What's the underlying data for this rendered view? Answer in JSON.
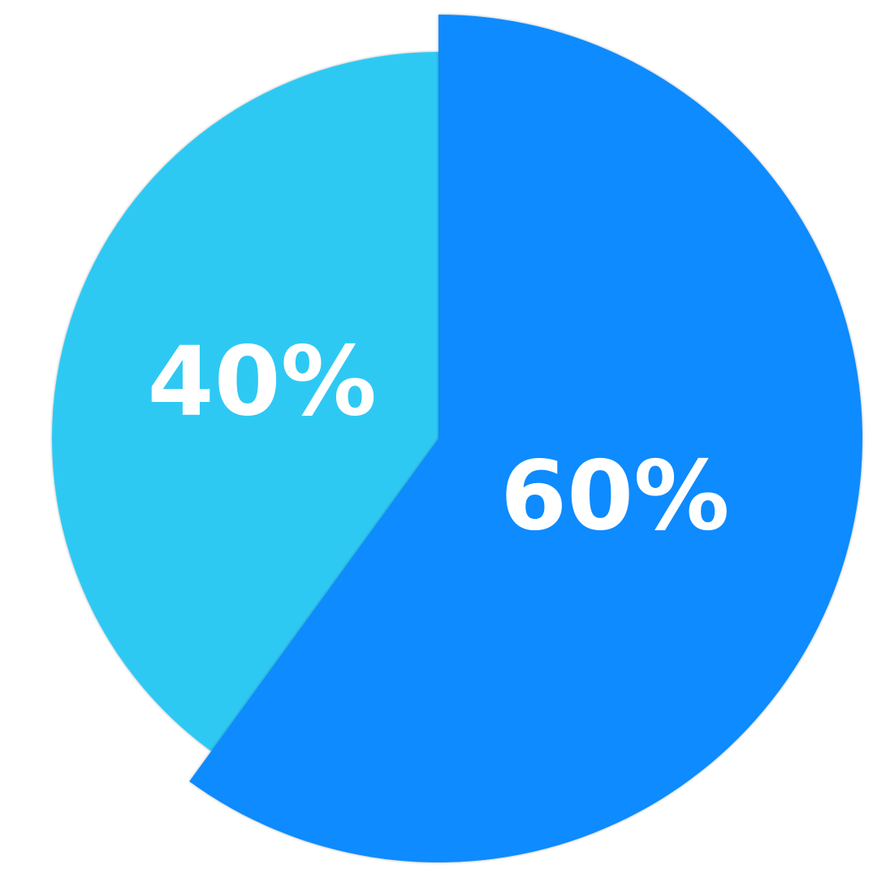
{
  "chart_data": {
    "type": "pie",
    "slices": [
      {
        "label": "60%",
        "value": 60,
        "color": "#078BFF",
        "exploded": true
      },
      {
        "label": "40%",
        "value": 40,
        "color": "#2FC9F3",
        "exploded": false
      }
    ],
    "start": "top",
    "direction": "clockwise",
    "legend": "none"
  }
}
